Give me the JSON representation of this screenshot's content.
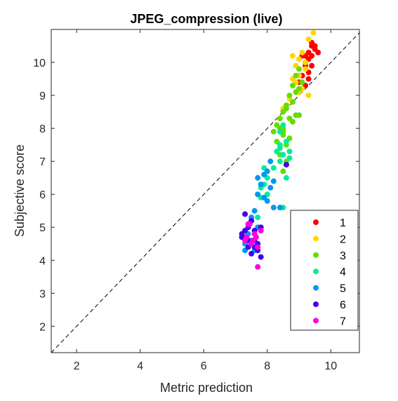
{
  "chart_data": {
    "type": "scatter",
    "title": "JPEG_compression (live)",
    "xlabel": "Metric prediction",
    "ylabel": "Subjective score",
    "xlim": [
      1.2,
      10.9
    ],
    "ylim": [
      1.2,
      11.0
    ],
    "xticks": [
      2,
      4,
      6,
      8,
      10
    ],
    "yticks": [
      2,
      3,
      4,
      5,
      6,
      7,
      8,
      9,
      10
    ],
    "reference_line": "y = x (dashed)",
    "grid": false,
    "legend_position": "bottom-right",
    "series": [
      {
        "name": "1",
        "color": "#ff0000",
        "points": [
          [
            9.4,
            10.6
          ],
          [
            9.5,
            10.4
          ],
          [
            9.3,
            10.3
          ],
          [
            9.2,
            10.2
          ],
          [
            9.6,
            10.3
          ],
          [
            9.3,
            10.1
          ],
          [
            9.2,
            10.0
          ],
          [
            9.4,
            9.9
          ],
          [
            9.1,
            9.6
          ],
          [
            9.3,
            9.5
          ],
          [
            9.0,
            9.4
          ],
          [
            9.2,
            9.3
          ],
          [
            9.5,
            10.5
          ],
          [
            9.4,
            10.2
          ],
          [
            9.2,
            9.9
          ],
          [
            9.3,
            9.7
          ],
          [
            9.4,
            10.5
          ],
          [
            9.1,
            10.2
          ]
        ]
      },
      {
        "name": "2",
        "color": "#ffd700",
        "points": [
          [
            9.45,
            10.9
          ],
          [
            9.3,
            10.7
          ],
          [
            9.1,
            10.3
          ],
          [
            9.0,
            10.1
          ],
          [
            8.9,
            9.9
          ],
          [
            9.2,
            9.8
          ],
          [
            9.0,
            9.6
          ],
          [
            8.8,
            9.5
          ],
          [
            9.1,
            9.2
          ],
          [
            9.3,
            9.0
          ],
          [
            8.7,
            8.9
          ],
          [
            8.6,
            8.7
          ],
          [
            8.8,
            8.8
          ],
          [
            8.5,
            8.6
          ],
          [
            9.0,
            9.1
          ],
          [
            8.9,
            9.4
          ],
          [
            9.2,
            10.0
          ],
          [
            8.8,
            10.2
          ]
        ]
      },
      {
        "name": "3",
        "color": "#66dd00",
        "points": [
          [
            9.0,
            9.8
          ],
          [
            8.9,
            9.6
          ],
          [
            9.1,
            9.4
          ],
          [
            8.8,
            9.3
          ],
          [
            9.0,
            9.2
          ],
          [
            8.9,
            9.1
          ],
          [
            8.7,
            9.0
          ],
          [
            8.8,
            8.8
          ],
          [
            8.6,
            8.7
          ],
          [
            8.5,
            8.5
          ],
          [
            8.4,
            8.3
          ],
          [
            8.9,
            8.4
          ],
          [
            8.7,
            8.3
          ],
          [
            8.3,
            8.1
          ],
          [
            8.4,
            8.0
          ],
          [
            8.2,
            7.9
          ],
          [
            8.3,
            7.6
          ],
          [
            8.5,
            7.8
          ],
          [
            8.6,
            7.5
          ],
          [
            8.4,
            7.2
          ],
          [
            8.6,
            7.0
          ],
          [
            8.5,
            6.7
          ],
          [
            8.6,
            8.6
          ],
          [
            9.0,
            8.4
          ],
          [
            8.8,
            8.2
          ],
          [
            8.5,
            7.9
          ],
          [
            8.7,
            7.7
          ],
          [
            8.5,
            8.0
          ]
        ]
      },
      {
        "name": "4",
        "color": "#00ee99",
        "points": [
          [
            8.5,
            8.1
          ],
          [
            8.4,
            7.9
          ],
          [
            8.6,
            7.6
          ],
          [
            8.4,
            7.5
          ],
          [
            8.3,
            7.3
          ],
          [
            8.5,
            7.2
          ],
          [
            8.4,
            7.0
          ],
          [
            8.7,
            7.1
          ],
          [
            8.6,
            6.9
          ],
          [
            8.0,
            6.5
          ],
          [
            7.9,
            6.3
          ],
          [
            7.8,
            6.2
          ],
          [
            8.0,
            6.0
          ],
          [
            7.8,
            5.9
          ],
          [
            8.2,
            6.8
          ],
          [
            7.7,
            5.3
          ],
          [
            8.5,
            5.6
          ],
          [
            8.4,
            7.4
          ],
          [
            7.9,
            6.8
          ],
          [
            7.7,
            6.0
          ],
          [
            8.7,
            7.3
          ],
          [
            8.6,
            6.5
          ]
        ]
      },
      {
        "name": "5",
        "color": "#0099ee",
        "points": [
          [
            8.1,
            7.0
          ],
          [
            8.0,
            6.7
          ],
          [
            7.9,
            6.6
          ],
          [
            7.7,
            6.5
          ],
          [
            7.8,
            6.3
          ],
          [
            8.2,
            6.4
          ],
          [
            8.1,
            6.2
          ],
          [
            7.9,
            5.9
          ],
          [
            8.0,
            5.8
          ],
          [
            7.6,
            5.5
          ],
          [
            7.5,
            5.3
          ],
          [
            7.7,
            5.0
          ],
          [
            7.4,
            4.8
          ],
          [
            7.5,
            4.6
          ],
          [
            7.3,
            4.3
          ],
          [
            7.6,
            4.3
          ],
          [
            8.4,
            5.6
          ],
          [
            7.7,
            6.0
          ],
          [
            7.5,
            5.2
          ],
          [
            8.2,
            5.6
          ],
          [
            7.3,
            4.5
          ]
        ]
      },
      {
        "name": "6",
        "color": "#4400ee",
        "points": [
          [
            7.3,
            5.4
          ],
          [
            7.5,
            5.2
          ],
          [
            7.4,
            5.0
          ],
          [
            7.6,
            4.9
          ],
          [
            7.2,
            4.8
          ],
          [
            7.3,
            4.7
          ],
          [
            7.4,
            4.6
          ],
          [
            7.5,
            4.5
          ],
          [
            7.6,
            4.4
          ],
          [
            7.7,
            4.3
          ],
          [
            7.5,
            4.2
          ],
          [
            7.8,
            4.1
          ],
          [
            7.6,
            4.6
          ],
          [
            7.3,
            4.9
          ],
          [
            8.6,
            6.9
          ],
          [
            7.8,
            5.0
          ],
          [
            7.2,
            4.7
          ],
          [
            7.7,
            4.5
          ],
          [
            7.4,
            4.4
          ]
        ]
      },
      {
        "name": "7",
        "color": "#ff00dd",
        "points": [
          [
            7.45,
            5.1
          ],
          [
            7.35,
            4.7
          ],
          [
            7.6,
            4.8
          ],
          [
            7.3,
            4.6
          ],
          [
            7.65,
            4.7
          ],
          [
            7.5,
            4.5
          ],
          [
            7.8,
            4.9
          ],
          [
            7.7,
            4.4
          ],
          [
            7.7,
            3.8
          ],
          [
            7.4,
            5.1
          ],
          [
            7.55,
            4.6
          ]
        ]
      }
    ]
  }
}
